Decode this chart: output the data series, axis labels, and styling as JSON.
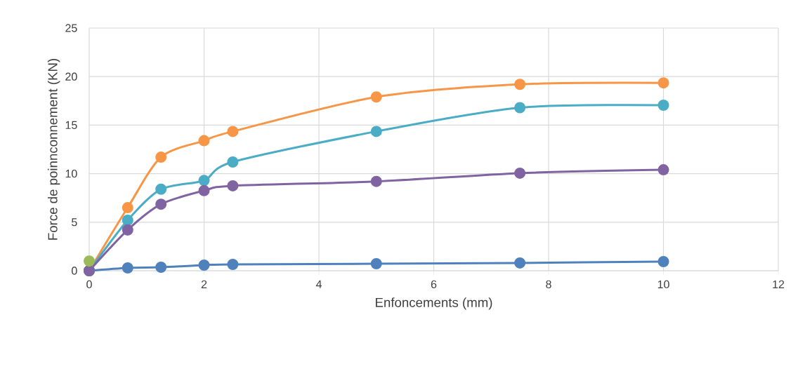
{
  "chart_data": {
    "type": "line",
    "xlabel": "Enfoncements (mm)",
    "ylabel": "Force de poinnconnement (KN)",
    "x": [
      0,
      0.67,
      1.25,
      2,
      2.5,
      5,
      7.5,
      10
    ],
    "series": [
      {
        "color": "#4f81bd",
        "values": [
          0,
          0.29,
          0.36,
          0.58,
          0.65,
          0.72,
          0.8,
          0.94
        ]
      },
      {
        "color": "#f79646",
        "values": [
          0,
          6.5,
          11.7,
          13.4,
          14.35,
          17.9,
          19.2,
          19.35
        ]
      },
      {
        "color": "#4bacc6",
        "values": [
          0,
          5.2,
          8.4,
          9.3,
          11.2,
          14.35,
          16.8,
          17.05
        ]
      },
      {
        "color": "#8064a2",
        "values": [
          0,
          4.2,
          6.85,
          8.25,
          8.75,
          9.2,
          10.05,
          10.4
        ]
      },
      {
        "color": "#9bbb59",
        "x": [
          0
        ],
        "values": [
          1.0
        ]
      }
    ],
    "xlim": [
      0,
      12
    ],
    "xticks": [
      0,
      2,
      4,
      6,
      8,
      10,
      12
    ],
    "ylim": [
      0,
      25
    ],
    "yticks": [
      0,
      5,
      10,
      15,
      20,
      25
    ],
    "grid": true,
    "marker": "circle",
    "line_style": "solid"
  }
}
